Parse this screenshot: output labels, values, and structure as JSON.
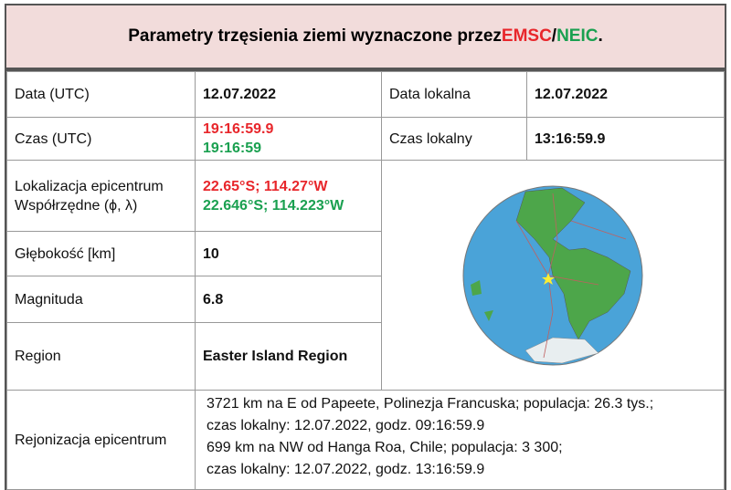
{
  "header": {
    "title_parts": [
      "Parametry trzęsienia ziemi wyznaczone przez ",
      "EMSC",
      "/",
      "NEIC",
      "."
    ]
  },
  "table": {
    "date_utc": {
      "label": "Data (UTC)",
      "value": "12.07.2022"
    },
    "date_local": {
      "label": "Data lokalna",
      "value": "12.07.2022"
    },
    "time_utc": {
      "label": "Czas (UTC)",
      "emsc": "19:16:59.9",
      "neic": "19:16:59"
    },
    "time_local": {
      "label": "Czas lokalny",
      "value": "13:16:59.9"
    },
    "location": {
      "label_lines": [
        "Lokalizacja epicentrum",
        "Współrzędne (ϕ, λ)"
      ],
      "emsc": "22.65°S; 114.27°W",
      "neic": "22.646°S; 114.223°W"
    },
    "depth": {
      "label": "Głębokość [km]",
      "value": "10"
    },
    "magnitude": {
      "label": "Magnituda",
      "value": "6.8"
    },
    "region": {
      "label": "Region",
      "value": "Easter Island Region"
    },
    "regionalization": {
      "label": "Rejonizacja epicentrum",
      "lines": [
        "3721 km na E od Papeete, Polinezja Francuska; populacja: 26.3 tys.;",
        "czas lokalny: 12.07.2022, godz. 09:16:59.9",
        "699 km na NW od Hanga Roa, Chile; populacja:  3 300;",
        "czas lokalny: 12.07.2022, godz. 13:16:59.9"
      ]
    }
  }
}
